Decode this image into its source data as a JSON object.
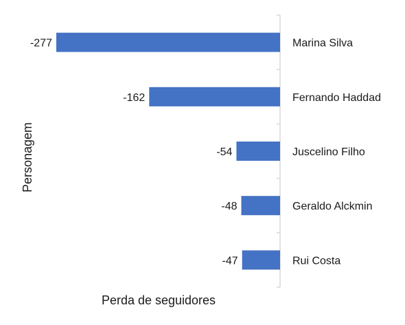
{
  "chart_data": {
    "type": "bar",
    "orientation": "horizontal",
    "categories": [
      "Marina Silva",
      "Fernando Haddad",
      "Juscelino Filho",
      "Geraldo Alckmin",
      "Rui Costa"
    ],
    "values": [
      -277,
      -162,
      -54,
      -48,
      -47
    ],
    "data_labels": [
      "-277",
      "-162",
      "-54",
      "-48",
      "-47"
    ],
    "xlabel": "Perda de seguidores",
    "ylabel": "Personagem",
    "xlim": [
      -277,
      0
    ],
    "grid": false,
    "legend": "none",
    "colors": {
      "bar": "#4472C4",
      "axis": "#d9d9d9",
      "text": "#1a1a1a"
    }
  }
}
